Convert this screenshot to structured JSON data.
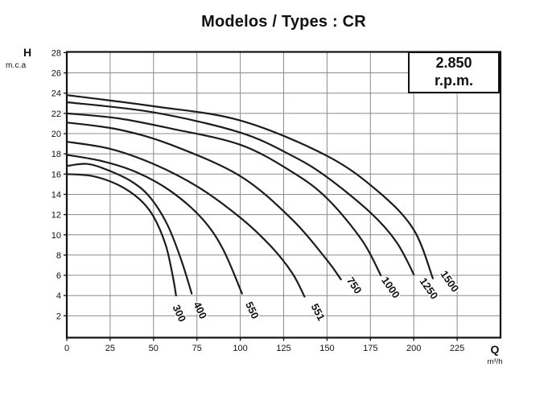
{
  "title": "Modelos / Types : CR",
  "rpm_box": {
    "line1": "2.850",
    "line2": "r.p.m."
  },
  "y_axis": {
    "label": "H",
    "unit": "m.c.a",
    "ticks": [
      28,
      26,
      24,
      22,
      20,
      18,
      16,
      14,
      12,
      10,
      8,
      6,
      4,
      2
    ]
  },
  "x_axis": {
    "label": "Q",
    "unit": "m³/h",
    "ticks": [
      0,
      25,
      50,
      75,
      100,
      125,
      150,
      175,
      200,
      225
    ]
  },
  "chart_data": {
    "type": "line",
    "title": "Modelos / Types : CR",
    "annotation": "2.850 r.p.m.",
    "xlabel": "Q (m³/h)",
    "ylabel": "H (m.c.a)",
    "xlim": [
      0,
      250
    ],
    "ylim": [
      0,
      28
    ],
    "grid": true,
    "x_grid_step": 25,
    "y_grid_step": 2,
    "legend_position": "labels-on-curves",
    "series": [
      {
        "name": "300",
        "points": [
          [
            0,
            16.0
          ],
          [
            15,
            15.8
          ],
          [
            30,
            14.9
          ],
          [
            42,
            13.5
          ],
          [
            50,
            11.8
          ],
          [
            57,
            9.0
          ],
          [
            61,
            6.0
          ],
          [
            63,
            4.0
          ]
        ],
        "label_at": [
          63,
          2.1
        ],
        "label_angle": 65
      },
      {
        "name": "400",
        "points": [
          [
            0,
            16.8
          ],
          [
            12,
            17.0
          ],
          [
            25,
            16.3
          ],
          [
            38,
            15.2
          ],
          [
            48,
            13.7
          ],
          [
            58,
            11.0
          ],
          [
            66,
            7.5
          ],
          [
            72,
            4.2
          ]
        ],
        "label_at": [
          75,
          2.4
        ],
        "label_angle": 65
      },
      {
        "name": "550",
        "points": [
          [
            0,
            17.9
          ],
          [
            20,
            17.3
          ],
          [
            40,
            16.2
          ],
          [
            60,
            14.3
          ],
          [
            78,
            11.6
          ],
          [
            90,
            8.6
          ],
          [
            101,
            4.2
          ]
        ],
        "label_at": [
          105,
          2.4
        ],
        "label_angle": 65
      },
      {
        "name": "551",
        "points": [
          [
            0,
            19.2
          ],
          [
            25,
            18.5
          ],
          [
            50,
            17.0
          ],
          [
            75,
            14.8
          ],
          [
            100,
            11.7
          ],
          [
            118,
            8.8
          ],
          [
            130,
            6.2
          ],
          [
            137,
            3.9
          ]
        ],
        "label_at": [
          143,
          2.2
        ],
        "label_angle": 62
      },
      {
        "name": "750",
        "points": [
          [
            0,
            21.1
          ],
          [
            30,
            20.4
          ],
          [
            60,
            18.9
          ],
          [
            100,
            15.8
          ],
          [
            130,
            11.5
          ],
          [
            150,
            7.5
          ],
          [
            158,
            5.6
          ]
        ],
        "label_at": [
          164,
          4.8
        ],
        "label_angle": 55
      },
      {
        "name": "1000",
        "points": [
          [
            0,
            22.0
          ],
          [
            30,
            21.5
          ],
          [
            60,
            20.5
          ],
          [
            100,
            18.9
          ],
          [
            130,
            16.2
          ],
          [
            150,
            13.6
          ],
          [
            170,
            9.5
          ],
          [
            181,
            6.0
          ]
        ],
        "label_at": [
          185,
          4.6
        ],
        "label_angle": 55
      },
      {
        "name": "1250",
        "points": [
          [
            0,
            23.1
          ],
          [
            50,
            22.1
          ],
          [
            100,
            20.1
          ],
          [
            130,
            17.8
          ],
          [
            150,
            15.7
          ],
          [
            175,
            12.2
          ],
          [
            190,
            9.3
          ],
          [
            200,
            6.1
          ]
        ],
        "label_at": [
          207,
          4.5
        ],
        "label_angle": 55
      },
      {
        "name": "1500",
        "points": [
          [
            0,
            23.8
          ],
          [
            50,
            22.7
          ],
          [
            100,
            21.3
          ],
          [
            150,
            17.8
          ],
          [
            180,
            14.2
          ],
          [
            200,
            10.5
          ],
          [
            211,
            5.7
          ]
        ],
        "label_at": [
          219,
          5.2
        ],
        "label_angle": 55
      }
    ],
    "colors": {
      "curve": "#1c1c1c",
      "grid": "#8c8c8c",
      "frame": "#111111",
      "text": "#111111"
    }
  }
}
